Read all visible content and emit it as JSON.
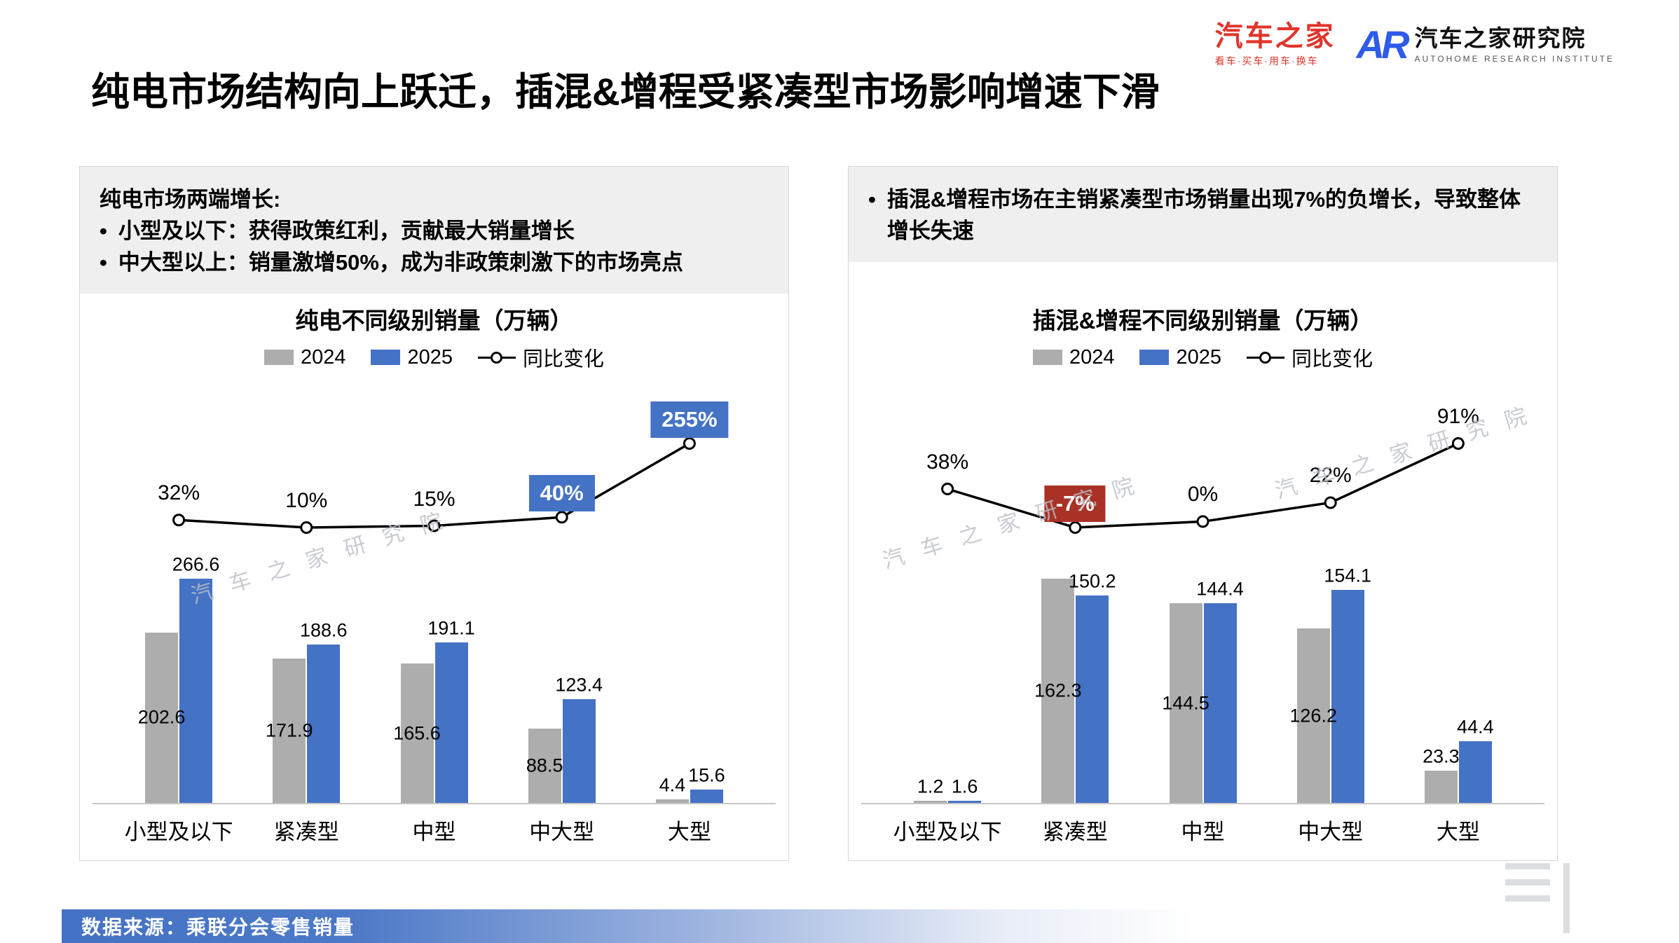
{
  "meta": {
    "title": "纯电市场结构向上跃迁，插混&增程受紧凑型市场影响增速下滑"
  },
  "logos": {
    "autohome": "汽车之家",
    "autohome_tagline": "看车·买车·用车·换车",
    "ar_mark": "AR",
    "institute": "汽车之家研究院",
    "institute_en": "AUTOHOME RESEARCH INSTITUTE"
  },
  "watermark": "汽车之家研究院",
  "panels": [
    {
      "header_title": "纯电市场两端增长:",
      "bullets": [
        "小型及以下：获得政策红利，贡献最大销量增长",
        "中大型以上：销量激增50%，成为非政策刺激下的市场亮点"
      ]
    },
    {
      "bullets": [
        "插混&增程市场在主销紧凑型市场销量出现7%的负增长，导致整体增长失速"
      ]
    }
  ],
  "footer": {
    "source": "数据来源：乘联分会零售销量"
  },
  "colors": {
    "bar_2024": "#ADADAD",
    "bar_2025": "#4472C4",
    "highlight_blue": "#4472C4",
    "highlight_red": "#A93226",
    "footer_blue": "#4472C4",
    "line": "#000000"
  },
  "chart_data": [
    {
      "type": "bar",
      "subtype": "grouped-bar-with-line",
      "title": "纯电不同级别销量（万辆）",
      "unit": "万辆",
      "categories": [
        "小型及以下",
        "紧凑型",
        "中型",
        "中大型",
        "大型"
      ],
      "series": [
        {
          "name": "2024",
          "values": [
            202.6,
            171.9,
            165.6,
            88.5,
            4.4
          ]
        },
        {
          "name": "2025",
          "values": [
            266.6,
            188.6,
            191.1,
            123.4,
            15.6
          ]
        }
      ],
      "line": {
        "name": "同比变化",
        "values_pct": [
          32,
          10,
          15,
          40,
          255
        ],
        "labels": [
          "32%",
          "10%",
          "15%",
          "40%",
          "255%"
        ],
        "highlight": [
          null,
          null,
          null,
          "blue",
          "blue"
        ]
      },
      "legend": [
        "2024",
        "2025",
        "同比变化"
      ],
      "legend_position": "top",
      "grid": false,
      "ylabel": ""
    },
    {
      "type": "bar",
      "subtype": "grouped-bar-with-line",
      "title": "插混&增程不同级别销量（万辆）",
      "unit": "万辆",
      "categories": [
        "小型及以下",
        "紧凑型",
        "中型",
        "中大型",
        "大型"
      ],
      "series": [
        {
          "name": "2024",
          "values": [
            1.2,
            162.3,
            144.5,
            126.2,
            23.3
          ]
        },
        {
          "name": "2025",
          "values": [
            1.6,
            150.2,
            144.4,
            154.1,
            44.4
          ]
        }
      ],
      "line": {
        "name": "同比变化",
        "values_pct": [
          38,
          -7,
          0,
          22,
          91
        ],
        "labels": [
          "38%",
          "-7%",
          "0%",
          "22%",
          "91%"
        ],
        "highlight": [
          null,
          "red",
          null,
          null,
          null
        ]
      },
      "legend": [
        "2024",
        "2025",
        "同比变化"
      ],
      "legend_position": "top",
      "grid": false,
      "ylabel": ""
    }
  ]
}
